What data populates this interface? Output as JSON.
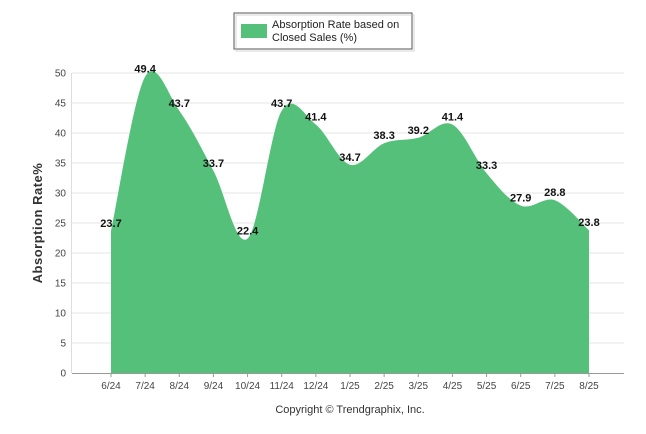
{
  "chart_data": {
    "type": "area",
    "legend": {
      "label_line1": "Absorption Rate based on",
      "label_line2": "Closed Sales (%)",
      "placement": "top-center"
    },
    "categories": [
      "6/24",
      "7/24",
      "8/24",
      "9/24",
      "10/24",
      "11/24",
      "12/24",
      "1/25",
      "2/25",
      "3/25",
      "4/25",
      "5/25",
      "6/25",
      "7/25",
      "8/25"
    ],
    "values": [
      23.7,
      49.4,
      43.7,
      33.7,
      22.4,
      43.7,
      41.4,
      34.7,
      38.3,
      39.2,
      41.4,
      33.3,
      27.9,
      28.8,
      23.8
    ],
    "data_labels": [
      "23.7",
      "49.4",
      "43.7",
      "33.7",
      "22.4",
      "43.7",
      "41.4",
      "34.7",
      "38.3",
      "39.2",
      "41.4",
      "33.3",
      "27.9",
      "28.8",
      "23.8"
    ],
    "ylabel": "Absorption Rate%",
    "ylim": [
      0,
      50
    ],
    "yticks": [
      0,
      5,
      10,
      15,
      20,
      25,
      30,
      35,
      40,
      45,
      50
    ],
    "grid": true,
    "color": "#55c07a",
    "footer": "Copyright © Trendgraphix, Inc."
  }
}
